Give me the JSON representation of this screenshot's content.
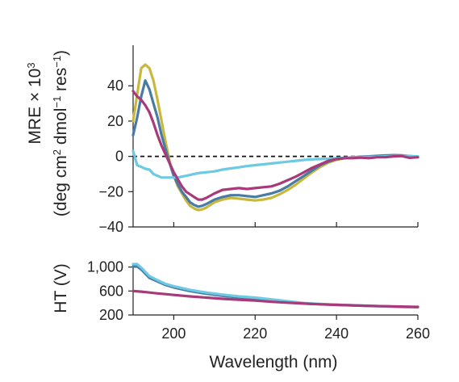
{
  "chart_data": [
    {
      "type": "line",
      "panel": "top",
      "ylabel_lines": [
        {
          "prefix": "MRE × 10",
          "sup": "3"
        },
        {
          "parts": [
            {
              "t": "(deg cm"
            },
            {
              "sup": "2"
            },
            {
              "t": " dmol"
            },
            {
              "sup": "−1"
            },
            {
              "t": " res"
            },
            {
              "sup": "−1"
            },
            {
              "t": ")"
            }
          ]
        }
      ],
      "xlim": [
        190,
        260
      ],
      "ylim": [
        -40,
        63
      ],
      "yticks": [
        40,
        20,
        0,
        -20,
        -40
      ],
      "ytick_labels": [
        "40",
        "20",
        "0",
        "−20",
        "−40"
      ],
      "xticks": [
        200,
        220,
        240,
        260
      ],
      "zero_line": {
        "y": 0,
        "style": "dashed"
      },
      "series": [
        {
          "color": "#c9b83e",
          "points": [
            [
              190,
              20
            ],
            [
              191,
              35
            ],
            [
              192,
              50
            ],
            [
              193,
              52
            ],
            [
              194,
              50
            ],
            [
              195,
              43
            ],
            [
              196,
              32
            ],
            [
              197,
              20
            ],
            [
              198,
              8
            ],
            [
              199,
              -3
            ],
            [
              200,
              -11
            ],
            [
              201,
              -17
            ],
            [
              202,
              -21
            ],
            [
              203,
              -25
            ],
            [
              204,
              -28
            ],
            [
              205,
              -29.5
            ],
            [
              206,
              -30.5
            ],
            [
              207,
              -30
            ],
            [
              208,
              -29
            ],
            [
              210,
              -26
            ],
            [
              212,
              -24.5
            ],
            [
              214,
              -23.5
            ],
            [
              216,
              -24
            ],
            [
              218,
              -24.5
            ],
            [
              220,
              -25
            ],
            [
              222,
              -24.5
            ],
            [
              224,
              -23.5
            ],
            [
              226,
              -21.5
            ],
            [
              228,
              -19
            ],
            [
              230,
              -16
            ],
            [
              232,
              -12.5
            ],
            [
              234,
              -9
            ],
            [
              236,
              -6
            ],
            [
              238,
              -3.5
            ],
            [
              240,
              -2
            ],
            [
              242,
              -1
            ],
            [
              244,
              -0.5
            ],
            [
              246,
              -0.3
            ],
            [
              248,
              -0.3
            ],
            [
              250,
              0
            ],
            [
              252,
              0.3
            ],
            [
              254,
              0.5
            ],
            [
              256,
              0.5
            ],
            [
              258,
              0
            ],
            [
              260,
              -0.5
            ]
          ]
        },
        {
          "color": "#4a7ba5",
          "points": [
            [
              190,
              12
            ],
            [
              191,
              22
            ],
            [
              192,
              34
            ],
            [
              193,
              43
            ],
            [
              194,
              38
            ],
            [
              195,
              30
            ],
            [
              196,
              22
            ],
            [
              197,
              12
            ],
            [
              198,
              4
            ],
            [
              199,
              -4
            ],
            [
              200,
              -11
            ],
            [
              201,
              -16
            ],
            [
              202,
              -20
            ],
            [
              203,
              -23
            ],
            [
              204,
              -26
            ],
            [
              205,
              -27.5
            ],
            [
              206,
              -28.5
            ],
            [
              207,
              -28
            ],
            [
              208,
              -27
            ],
            [
              210,
              -24.5
            ],
            [
              212,
              -23
            ],
            [
              214,
              -22
            ],
            [
              216,
              -22
            ],
            [
              218,
              -22.5
            ],
            [
              220,
              -23
            ],
            [
              222,
              -22
            ],
            [
              224,
              -21
            ],
            [
              226,
              -19.5
            ],
            [
              228,
              -17
            ],
            [
              230,
              -14
            ],
            [
              232,
              -11
            ],
            [
              234,
              -8
            ],
            [
              236,
              -5
            ],
            [
              238,
              -3
            ],
            [
              240,
              -1.5
            ],
            [
              242,
              -1
            ],
            [
              244,
              -0.5
            ],
            [
              246,
              -0.2
            ],
            [
              248,
              0
            ],
            [
              250,
              0.3
            ],
            [
              252,
              0.5
            ],
            [
              254,
              0.7
            ],
            [
              256,
              0.6
            ],
            [
              258,
              0.2
            ],
            [
              260,
              -0.3
            ]
          ]
        },
        {
          "color": "#6ec9e3",
          "points": [
            [
              190,
              3
            ],
            [
              191,
              -5
            ],
            [
              192,
              -6
            ],
            [
              193,
              -7
            ],
            [
              194,
              -7.5
            ],
            [
              195,
              -10
            ],
            [
              196,
              -11
            ],
            [
              197,
              -12
            ],
            [
              198,
              -12
            ],
            [
              199,
              -12
            ],
            [
              200,
              -12
            ],
            [
              201,
              -12
            ],
            [
              202,
              -11.5
            ],
            [
              203,
              -11
            ],
            [
              204,
              -10.5
            ],
            [
              205,
              -10
            ],
            [
              206,
              -9.5
            ],
            [
              208,
              -9
            ],
            [
              210,
              -8.5
            ],
            [
              212,
              -7.5
            ],
            [
              214,
              -6.8
            ],
            [
              216,
              -6.2
            ],
            [
              218,
              -5.5
            ],
            [
              220,
              -5
            ],
            [
              222,
              -4.5
            ],
            [
              224,
              -4
            ],
            [
              226,
              -3.5
            ],
            [
              228,
              -3
            ],
            [
              230,
              -2.5
            ],
            [
              232,
              -2
            ],
            [
              234,
              -1.7
            ],
            [
              236,
              -1.5
            ],
            [
              238,
              -1.3
            ],
            [
              240,
              -1
            ],
            [
              242,
              -0.8
            ],
            [
              244,
              -0.6
            ],
            [
              246,
              -0.5
            ],
            [
              248,
              -0.3
            ],
            [
              250,
              -0.2
            ],
            [
              252,
              0
            ],
            [
              254,
              0.2
            ],
            [
              256,
              0.3
            ],
            [
              258,
              0.2
            ],
            [
              260,
              0
            ]
          ]
        },
        {
          "color": "#a83a7a",
          "points": [
            [
              190,
              37
            ],
            [
              191,
              34
            ],
            [
              192,
              32
            ],
            [
              193,
              29
            ],
            [
              194,
              25
            ],
            [
              195,
              19
            ],
            [
              196,
              12
            ],
            [
              197,
              6
            ],
            [
              198,
              1
            ],
            [
              199,
              -4
            ],
            [
              200,
              -9
            ],
            [
              201,
              -13
            ],
            [
              202,
              -17
            ],
            [
              203,
              -20
            ],
            [
              204,
              -21.5
            ],
            [
              205,
              -23
            ],
            [
              206,
              -24.5
            ],
            [
              207,
              -24.5
            ],
            [
              208,
              -23.5
            ],
            [
              210,
              -21
            ],
            [
              212,
              -19
            ],
            [
              214,
              -18.5
            ],
            [
              216,
              -18
            ],
            [
              218,
              -18.5
            ],
            [
              220,
              -18
            ],
            [
              222,
              -17.5
            ],
            [
              224,
              -17
            ],
            [
              226,
              -15.5
            ],
            [
              228,
              -13.5
            ],
            [
              230,
              -11.5
            ],
            [
              232,
              -9
            ],
            [
              234,
              -6.5
            ],
            [
              236,
              -4.5
            ],
            [
              238,
              -2.5
            ],
            [
              240,
              -1.5
            ],
            [
              242,
              -1
            ],
            [
              244,
              -1
            ],
            [
              246,
              -0.7
            ],
            [
              248,
              -1
            ],
            [
              250,
              -0.5
            ],
            [
              252,
              -0.5
            ],
            [
              254,
              0
            ],
            [
              256,
              0.2
            ],
            [
              258,
              -0.8
            ],
            [
              260,
              -0.5
            ]
          ]
        }
      ]
    },
    {
      "type": "line",
      "panel": "bottom",
      "ylabel": "HT (V)",
      "xlabel": "Wavelength (nm)",
      "xlim": [
        190,
        260
      ],
      "ylim": [
        200,
        1050
      ],
      "yticks": [
        1000,
        600,
        200
      ],
      "ytick_labels": [
        "1,000",
        "600",
        "200"
      ],
      "xticks": [
        200,
        220,
        240,
        260
      ],
      "xtick_labels": [
        "200",
        "220",
        "240",
        "260"
      ],
      "series": [
        {
          "color": "#4a7ba5",
          "points": [
            [
              190,
              1010
            ],
            [
              191,
              1010
            ],
            [
              192,
              960
            ],
            [
              193,
              890
            ],
            [
              194,
              820
            ],
            [
              196,
              760
            ],
            [
              198,
              700
            ],
            [
              200,
              660
            ],
            [
              204,
              600
            ],
            [
              208,
              555
            ],
            [
              212,
              520
            ],
            [
              216,
              495
            ],
            [
              220,
              475
            ],
            [
              224,
              450
            ],
            [
              228,
              420
            ],
            [
              232,
              395
            ],
            [
              236,
              380
            ],
            [
              240,
              370
            ],
            [
              244,
              360
            ],
            [
              248,
              350
            ],
            [
              252,
              345
            ],
            [
              256,
              335
            ],
            [
              260,
              330
            ]
          ]
        },
        {
          "color": "#6ec9e3",
          "points": [
            [
              190,
              1050
            ],
            [
              191,
              1050
            ],
            [
              192,
              990
            ],
            [
              193,
              920
            ],
            [
              194,
              850
            ],
            [
              196,
              780
            ],
            [
              198,
              720
            ],
            [
              200,
              680
            ],
            [
              204,
              620
            ],
            [
              208,
              575
            ],
            [
              212,
              540
            ],
            [
              216,
              510
            ],
            [
              220,
              490
            ],
            [
              224,
              460
            ],
            [
              228,
              430
            ],
            [
              232,
              400
            ],
            [
              236,
              385
            ],
            [
              240,
              372
            ],
            [
              244,
              362
            ],
            [
              248,
              352
            ],
            [
              252,
              345
            ],
            [
              256,
              338
            ],
            [
              260,
              332
            ]
          ]
        },
        {
          "color": "#a83a7a",
          "points": [
            [
              190,
              600
            ],
            [
              192,
              590
            ],
            [
              194,
              575
            ],
            [
              196,
              560
            ],
            [
              198,
              548
            ],
            [
              200,
              535
            ],
            [
              204,
              510
            ],
            [
              208,
              490
            ],
            [
              212,
              470
            ],
            [
              216,
              455
            ],
            [
              220,
              440
            ],
            [
              224,
              420
            ],
            [
              228,
              405
            ],
            [
              232,
              390
            ],
            [
              236,
              378
            ],
            [
              240,
              368
            ],
            [
              244,
              360
            ],
            [
              248,
              352
            ],
            [
              252,
              346
            ],
            [
              256,
              340
            ],
            [
              260,
              335
            ]
          ]
        }
      ]
    }
  ]
}
